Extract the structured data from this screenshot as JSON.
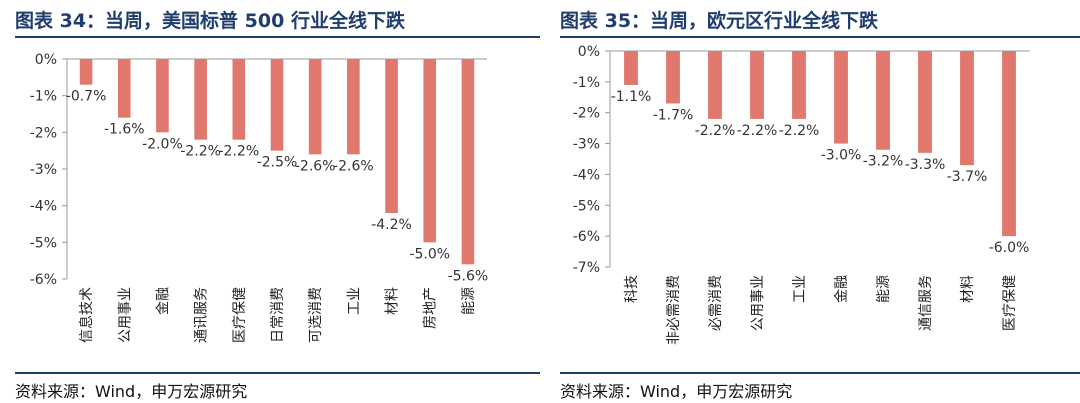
{
  "chart_data": [
    {
      "type": "bar",
      "title": "图表 34：当周，美国标普 500 行业全线下跌",
      "source": "资料来源：Wind，申万宏源研究",
      "categories": [
        "信息技术",
        "公用事业",
        "金融",
        "通讯服务",
        "医疗保健",
        "日常消费",
        "可选消费",
        "工业",
        "材料",
        "房地产",
        "能源"
      ],
      "values": [
        -0.7,
        -1.6,
        -2.0,
        -2.2,
        -2.2,
        -2.5,
        -2.6,
        -2.6,
        -4.2,
        -5.0,
        -5.6
      ],
      "data_labels": [
        "-0.7%",
        "-1.6%",
        "-2.0%",
        "-2.2%",
        "-2.2%",
        "-2.5%",
        "-2.6%",
        "-2.6%",
        "-4.2%",
        "-5.0%",
        "-5.6%"
      ],
      "yticks": [
        "0%",
        "-1%",
        "-2%",
        "-3%",
        "-4%",
        "-5%",
        "-6%"
      ],
      "ylim": [
        -6,
        0
      ],
      "bar_color": "#e0786d",
      "grid": false
    },
    {
      "type": "bar",
      "title": "图表 35：当周，欧元区行业全线下跌",
      "source": "资料来源：Wind，申万宏源研究",
      "categories": [
        "科技",
        "非必需消费",
        "必需消费",
        "公用事业",
        "工业",
        "金融",
        "能源",
        "通信服务",
        "材料",
        "医疗保健"
      ],
      "values": [
        -1.1,
        -1.7,
        -2.2,
        -2.2,
        -2.2,
        -3.0,
        -3.2,
        -3.3,
        -3.7,
        -6.0
      ],
      "data_labels": [
        "-1.1%",
        "-1.7%",
        "-2.2%",
        "-2.2%",
        "-2.2%",
        "-3.0%",
        "-3.2%",
        "-3.3%",
        "-3.7%",
        "-6.0%"
      ],
      "yticks": [
        "0%",
        "-1%",
        "-2%",
        "-3%",
        "-4%",
        "-5%",
        "-6%",
        "-7%"
      ],
      "ylim": [
        -7,
        0
      ],
      "bar_color": "#e0786d",
      "grid": false
    }
  ]
}
